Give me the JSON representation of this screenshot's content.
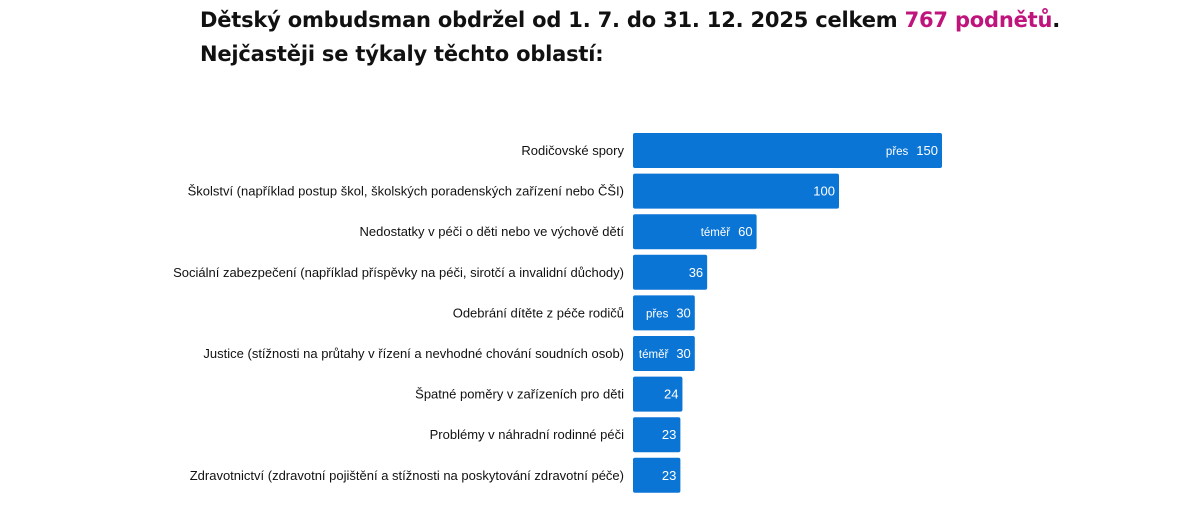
{
  "header": {
    "line1_prefix": "Dětský ombudsman obdržel od 1. 7. do 31. 12. 2025  celkem ",
    "line1_highlight": "767 podnětů",
    "line1_suffix": ".",
    "line2": "Nejčastěji se týkaly těchto oblastí:"
  },
  "colors": {
    "bar": "#0b75d5",
    "highlight": "#c0147d",
    "text": "#111111"
  },
  "chart_data": {
    "type": "bar",
    "orientation": "horizontal",
    "categories": [
      "Rodičovské spory",
      "Školství (například postup škol, školských poradenských zařízení nebo ČŠI)",
      "Nedostatky v péči o děti nebo ve výchově dětí",
      "Sociální zabezpečení (například příspěvky na péči, sirotčí a invalidní důchody)",
      "Odebrání dítěte z péče rodičů",
      "Justice (stížnosti na průtahy v řízení a nevhodné chování soudních osob)",
      "Špatné poměry v zařízeních pro děti",
      "Problémy v náhradní rodinné péči",
      "Zdravotnictví (zdravotní pojištění a stížnosti na poskytování zdravotní péče)"
    ],
    "values": [
      150,
      100,
      60,
      36,
      30,
      30,
      24,
      23,
      23
    ],
    "value_labels": [
      "150",
      "100",
      "60",
      "36",
      "30",
      "30",
      "24",
      "23",
      "23"
    ],
    "qualifiers": [
      "přes",
      "",
      "téměř",
      "",
      "přes",
      "téměř",
      "",
      "",
      ""
    ],
    "grid": false,
    "legend": "none"
  }
}
